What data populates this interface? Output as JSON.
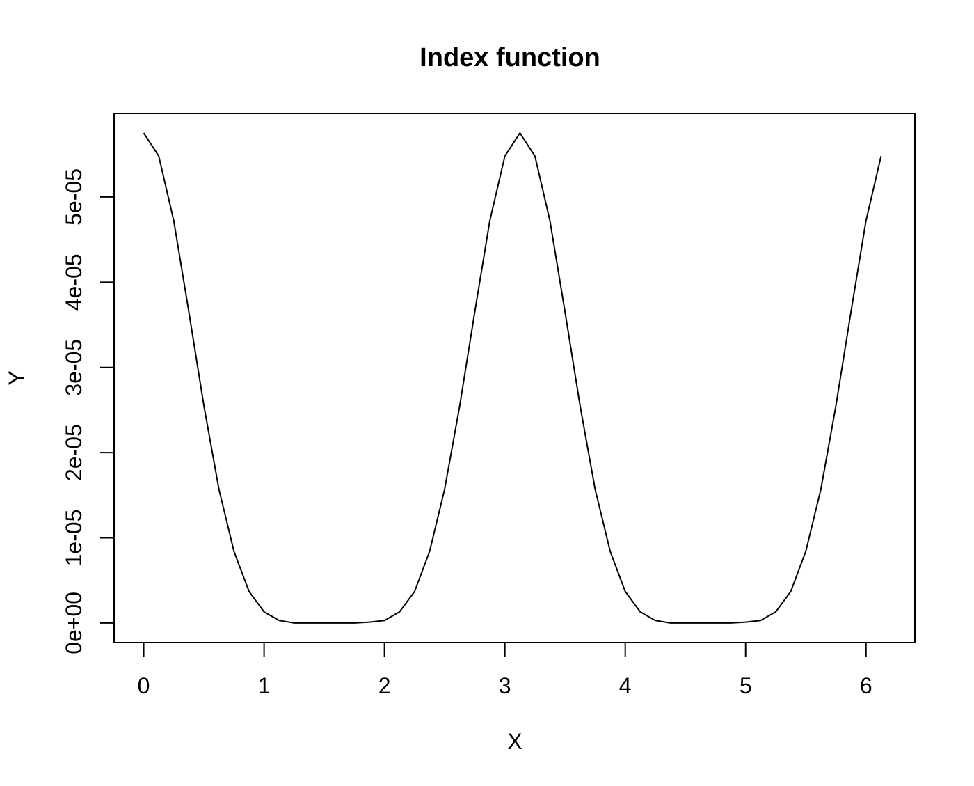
{
  "chart_data": {
    "type": "line",
    "title": "Index function",
    "xlabel": "X",
    "ylabel": "Y",
    "xlim": [
      -0.246,
      6.406
    ],
    "ylim": [
      -2.3e-06,
      5.98e-05
    ],
    "grid": false,
    "x_ticks": [
      0,
      1,
      2,
      3,
      4,
      5,
      6
    ],
    "x_tick_labels": [
      "0",
      "1",
      "2",
      "3",
      "4",
      "5",
      "6"
    ],
    "y_ticks": [
      0,
      1e-05,
      2e-05,
      3e-05,
      4e-05,
      5e-05
    ],
    "y_tick_labels": [
      "0e+00",
      "1e-05",
      "2e-05",
      "3e-05",
      "4e-05",
      "5e-05"
    ],
    "series": [
      {
        "x": [
          0,
          0.125,
          0.25,
          0.375,
          0.5,
          0.625,
          0.75,
          0.875,
          1.0,
          1.125,
          1.25,
          1.375,
          1.5,
          1.625,
          1.75,
          1.875,
          2.0,
          2.125,
          2.25,
          2.375,
          2.5,
          2.625,
          2.75,
          2.875,
          3.0,
          3.125,
          3.25,
          3.375,
          3.5,
          3.625,
          3.75,
          3.875,
          4.0,
          4.125,
          4.25,
          4.375,
          4.5,
          4.625,
          4.75,
          4.875,
          5.0,
          5.125,
          5.25,
          5.375,
          5.5,
          5.625,
          5.75,
          5.875,
          6.0,
          6.125
        ],
        "y": [
          5.75e-05,
          5.48e-05,
          4.72e-05,
          3.65e-05,
          2.55e-05,
          1.57e-05,
          8.4e-06,
          3.7e-06,
          1.3e-06,
          3e-07,
          0,
          0,
          0,
          0,
          0,
          1e-07,
          3e-07,
          1.3e-06,
          3.7e-06,
          8.4e-06,
          1.57e-05,
          2.55e-05,
          3.65e-05,
          4.72e-05,
          5.48e-05,
          5.75e-05,
          5.48e-05,
          4.72e-05,
          3.65e-05,
          2.55e-05,
          1.57e-05,
          8.4e-06,
          3.7e-06,
          1.3e-06,
          3e-07,
          0,
          0,
          0,
          0,
          0,
          1e-07,
          3e-07,
          1.3e-06,
          3.7e-06,
          8.4e-06,
          1.57e-05,
          2.55e-05,
          3.65e-05,
          4.72e-05,
          5.48e-05
        ]
      }
    ]
  }
}
